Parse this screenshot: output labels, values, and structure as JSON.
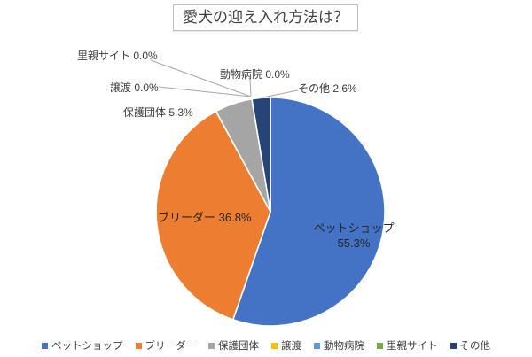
{
  "chart_data": {
    "type": "pie",
    "title": "愛犬の迎え入れ方法は？",
    "direction": "clockwise",
    "start_angle_deg": 0,
    "legend_position": "bottom",
    "grid": false,
    "slices": [
      {
        "label": "ペットショップ",
        "value": 55.3,
        "pct_label": "55.3%",
        "color": "#4472C4",
        "label_placement": "inside"
      },
      {
        "label": "ブリーダー",
        "value": 36.8,
        "pct_label": "36.8%",
        "color": "#ED7D31",
        "label_placement": "inside"
      },
      {
        "label": "保護団体",
        "value": 5.3,
        "pct_label": "5.3%",
        "color": "#A5A5A5",
        "label_placement": "outside"
      },
      {
        "label": "譲渡",
        "value": 0.0,
        "pct_label": "0.0%",
        "color": "#FFC000",
        "label_placement": "outside"
      },
      {
        "label": "動物病院",
        "value": 0.0,
        "pct_label": "0.0%",
        "color": "#5B9BD5",
        "label_placement": "outside"
      },
      {
        "label": "里親サイト",
        "value": 0.0,
        "pct_label": "0.0%",
        "color": "#70AD47",
        "label_placement": "outside"
      },
      {
        "label": "その他",
        "value": 2.6,
        "pct_label": "2.6%",
        "color": "#264478",
        "label_placement": "outside"
      }
    ]
  }
}
